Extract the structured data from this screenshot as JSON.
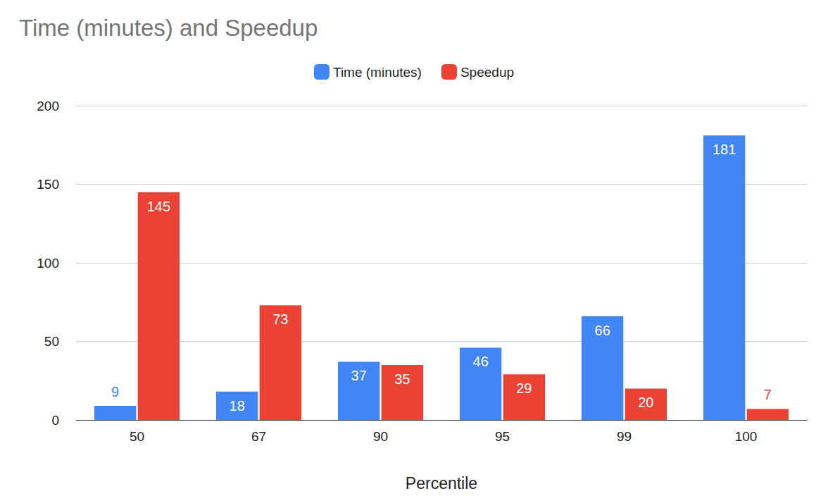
{
  "chart_data": {
    "type": "bar",
    "title": "Time (minutes) and Speedup",
    "x_label": "Percentile",
    "categories": [
      "50",
      "67",
      "90",
      "95",
      "99",
      "100"
    ],
    "series": [
      {
        "name": "Time (minutes)",
        "color": "#4285f4",
        "values": [
          9,
          18,
          37,
          46,
          66,
          181
        ]
      },
      {
        "name": "Speedup",
        "color": "#ea4335",
        "values": [
          145,
          73,
          35,
          29,
          20,
          7
        ]
      }
    ],
    "ylim": [
      0,
      200
    ],
    "yticks": [
      0,
      50,
      100,
      150,
      200
    ],
    "grid": true,
    "legend": "top",
    "data_labels": true
  }
}
